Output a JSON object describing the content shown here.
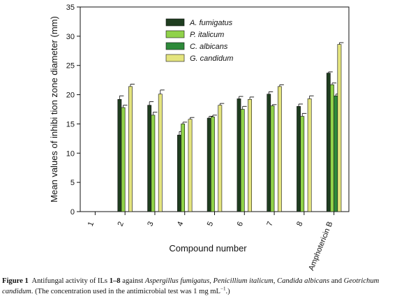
{
  "chart_data": {
    "type": "bar",
    "ylabel": "Mean values of inhibi tion zone diameter (mm)",
    "xlabel": "Compound number",
    "ylim": [
      0,
      35
    ],
    "yticks": [
      0,
      5,
      10,
      15,
      20,
      25,
      30,
      35
    ],
    "categories": [
      "1",
      "2",
      "3",
      "4",
      "5",
      "6",
      "7",
      "8",
      "Amphotericin B"
    ],
    "legend_position": "top-center",
    "series": [
      {
        "name": "A. fumigatus",
        "color": "#1f3d20",
        "values": [
          0,
          19.2,
          18.2,
          13.1,
          16.0,
          19.3,
          20.1,
          18.0,
          23.7
        ],
        "errors": [
          0,
          0.6,
          0.6,
          0.6,
          0.3,
          0.4,
          0.4,
          0.4,
          0.2
        ]
      },
      {
        "name": "P. italicum",
        "color": "#90d24a",
        "values": [
          0,
          17.8,
          16.5,
          15.0,
          16.2,
          17.5,
          18.1,
          16.3,
          21.7
        ],
        "errors": [
          0,
          0.4,
          0.5,
          0.3,
          0.3,
          0.5,
          0.2,
          0.5,
          0.3
        ]
      },
      {
        "name": "C. albicans",
        "color": "#2e8a3a",
        "values": [
          0,
          0,
          0,
          0,
          0,
          0,
          0,
          0,
          19.8
        ],
        "errors": [
          0,
          0,
          0,
          0,
          0,
          0,
          0,
          0,
          0.3
        ]
      },
      {
        "name": "G. candidum",
        "color": "#e4e47e",
        "values": [
          0,
          21.4,
          20.1,
          15.8,
          18.2,
          19.2,
          21.4,
          19.3,
          28.6
        ],
        "errors": [
          0,
          0.4,
          0.7,
          0.3,
          0.3,
          0.4,
          0.3,
          0.5,
          0.3
        ]
      }
    ]
  },
  "caption": {
    "label": "Figure 1",
    "text1": "Antifungal activity of ILs ",
    "range": "1–8",
    "text2": " against ",
    "sp1": "Aspergillus fumigatus",
    "sep1": ", ",
    "sp2": "Penicillium italicum",
    "sep2": ", ",
    "sp3": "Candida albicans",
    "sep3": " and ",
    "sp4": "Geotrichum candidum",
    "text3": ". (The concentration used in the antimicrobial test was 1 mg mL",
    "sup": "−1",
    "text4": ".)"
  }
}
